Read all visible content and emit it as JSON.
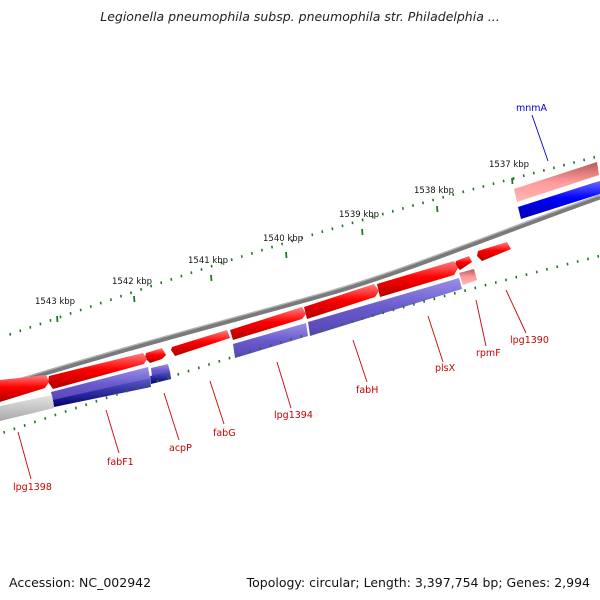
{
  "title": "Legionella pneumophila subsp. pneumophila str. Philadelphia ...",
  "footer": {
    "accession": "Accession: NC_002942",
    "summary": "Topology: circular; Length: 3,397,754 bp; Genes: 2,994"
  },
  "kbp_labels": [
    "1537 kbp",
    "1538 kbp",
    "1539 kbp",
    "1540 kbp",
    "1541 kbp",
    "1542 kbp",
    "1543 kbp"
  ],
  "gene_labels": [
    {
      "name": "mnmA",
      "color": "#0000cc"
    },
    {
      "name": "lpg1390",
      "color": "#cc0000"
    },
    {
      "name": "rpmF",
      "color": "#cc0000"
    },
    {
      "name": "plsX",
      "color": "#cc0000"
    },
    {
      "name": "fabH",
      "color": "#cc0000"
    },
    {
      "name": "lpg1394",
      "color": "#cc0000"
    },
    {
      "name": "fabG",
      "color": "#cc0000"
    },
    {
      "name": "acpP",
      "color": "#cc0000"
    },
    {
      "name": "fabF1",
      "color": "#cc0000"
    },
    {
      "name": "lpg1398",
      "color": "#cc0000"
    }
  ],
  "colors": {
    "forward_strand": "#ff0000",
    "reverse_strand": "#0000ff",
    "highlight_strand": "#6a5acd",
    "backbone": "#808080",
    "tick": "#1e7a1e"
  }
}
